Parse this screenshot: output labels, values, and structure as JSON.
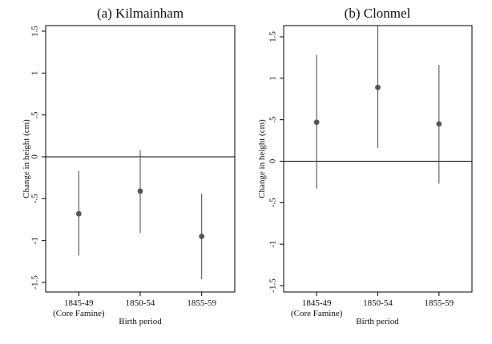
{
  "chart_data": [
    {
      "type": "scatter",
      "subtype": "point-with-confidence-interval",
      "title": "(a) Kilmainham",
      "xlabel": "Birth period",
      "ylabel": "Change in height (cm)",
      "categories": [
        "1845-49\n(Core Famine)",
        "1850-54",
        "1855-59"
      ],
      "values": [
        -0.68,
        -0.41,
        -0.95
      ],
      "ci_low": [
        -1.18,
        -0.91,
        -1.46
      ],
      "ci_high": [
        -0.17,
        0.08,
        -0.44
      ],
      "ylim": [
        -1.5,
        1.5
      ],
      "yticks": [
        -1.5,
        -1,
        -0.5,
        0,
        0.5,
        1,
        1.5
      ],
      "ytick_labels": [
        "-1.5",
        "-1",
        "-.5",
        "0",
        ".5",
        "1",
        "1.5"
      ],
      "reference_line": 0,
      "grid": false,
      "legend": "none"
    },
    {
      "type": "scatter",
      "subtype": "point-with-confidence-interval",
      "title": "(b) Clonmel",
      "xlabel": "Birth period",
      "ylabel": "Change in height (cm)",
      "categories": [
        "1845-49\n(Core Famine)",
        "1850-54",
        "1855-59"
      ],
      "values": [
        0.47,
        0.89,
        0.45
      ],
      "ci_low": [
        -0.33,
        0.16,
        -0.27
      ],
      "ci_high": [
        1.28,
        1.63,
        1.16
      ],
      "ylim": [
        -1.5,
        1.5
      ],
      "yticks": [
        -1.5,
        -1,
        -0.5,
        0,
        0.5,
        1,
        1.5
      ],
      "ytick_labels": [
        "-1.5",
        "-1",
        "-.5",
        "0",
        ".5",
        "1",
        "1.5"
      ],
      "reference_line": 0,
      "grid": false,
      "legend": "none"
    }
  ],
  "colors": {
    "frame": "#000000",
    "point": "#555555",
    "ci_line": "#555555",
    "reference_line": "#000000",
    "text": "#111111"
  }
}
